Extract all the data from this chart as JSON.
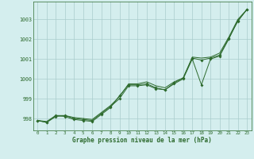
{
  "xlabel": "Graphe pression niveau de la mer (hPa)",
  "x": [
    0,
    1,
    2,
    3,
    4,
    5,
    6,
    7,
    8,
    9,
    10,
    11,
    12,
    13,
    14,
    15,
    16,
    17,
    18,
    19,
    20,
    21,
    22,
    23
  ],
  "line_smooth": [
    997.9,
    997.85,
    998.15,
    998.15,
    998.05,
    998.0,
    997.95,
    998.3,
    998.65,
    999.1,
    999.75,
    999.75,
    999.85,
    999.65,
    999.55,
    999.85,
    1000.05,
    1001.1,
    1001.05,
    1001.1,
    1001.3,
    1002.1,
    1003.0,
    1003.5
  ],
  "line_marker1": [
    997.9,
    997.8,
    998.1,
    998.15,
    998.0,
    997.95,
    997.9,
    998.25,
    998.6,
    999.0,
    999.65,
    999.65,
    999.7,
    999.5,
    999.45,
    999.75,
    1000.0,
    1001.0,
    999.7,
    1001.0,
    1001.15,
    1002.0,
    1002.95,
    1003.5
  ],
  "line_marker2": [
    997.9,
    997.8,
    998.15,
    998.1,
    997.95,
    997.9,
    997.85,
    998.2,
    998.55,
    999.15,
    999.7,
    999.7,
    999.75,
    999.55,
    999.45,
    999.8,
    1000.05,
    1001.05,
    1000.95,
    1001.05,
    1001.2,
    1002.05,
    1002.9,
    1003.5
  ],
  "line_color": "#2d6a2d",
  "bg_color": "#d4eeee",
  "grid_color": "#aacccc",
  "text_color": "#2d6a2d",
  "ylim": [
    997.4,
    1003.9
  ],
  "yticks": [
    998,
    999,
    1000,
    1001,
    1002,
    1003
  ],
  "xticks": [
    0,
    1,
    2,
    3,
    4,
    5,
    6,
    7,
    8,
    9,
    10,
    11,
    12,
    13,
    14,
    15,
    16,
    17,
    18,
    19,
    20,
    21,
    22,
    23
  ]
}
